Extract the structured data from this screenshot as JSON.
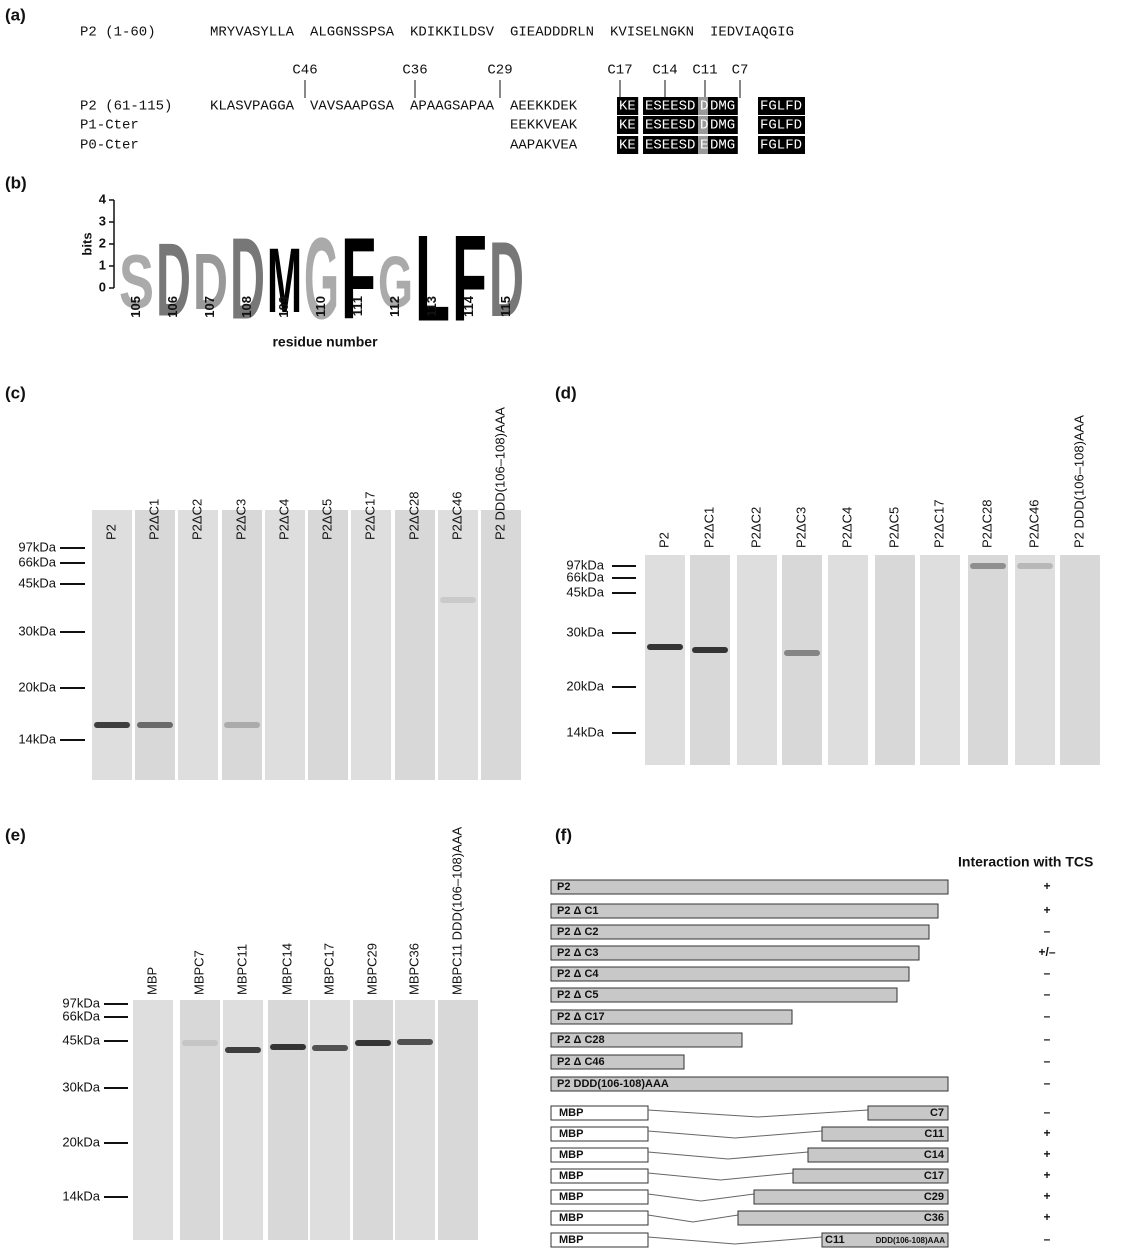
{
  "panel_a": {
    "label": "(a)",
    "row1": {
      "name": "P2 (1-60)",
      "blocks": [
        "MRYVASYLLA",
        "ALGGNSSPSA",
        "KDIKKILDSV",
        "GIEADDDRLN",
        "KVISELNGKN",
        "IEDVIAQGIG"
      ]
    },
    "cut_sites": [
      "C46",
      "C36",
      "C29",
      "C17",
      "C14",
      "C11",
      "C7"
    ],
    "rows": [
      {
        "name": "P2 (61-115)",
        "blocks": [
          "KLASVPAGGA",
          "VAVSAAPGSA",
          "APAAGSAPAA",
          "AEEKKDEK",
          "KE",
          "ESEESD",
          "D",
          "DMG",
          "FGLFD"
        ]
      },
      {
        "name": "P1-Cter",
        "blocks": [
          "EEKKVEAK",
          "KE",
          "ESEESD",
          "D",
          "DMG",
          "FGLFD"
        ]
      },
      {
        "name": "P0-Cter",
        "blocks": [
          "AAPAKVEA",
          "KE",
          "ESEESD",
          "E",
          "DMG",
          "FGLFD"
        ]
      }
    ]
  },
  "panel_b": {
    "label": "(b)",
    "ylabel": "bits",
    "xlabel": "residue number",
    "yticks": [
      0,
      1,
      2,
      3,
      4
    ],
    "ylim": [
      0,
      4
    ],
    "positions": [
      "105",
      "106",
      "107",
      "108",
      "109",
      "110",
      "111",
      "112",
      "113",
      "114",
      "115"
    ],
    "letters": [
      "S",
      "D",
      "D",
      "D",
      "M",
      "G",
      "F",
      "G",
      "L",
      "F",
      "D"
    ],
    "heights": [
      2.5,
      3.4,
      2.6,
      3.8,
      3.0,
      3.8,
      3.8,
      2.4,
      4.0,
      4.0,
      3.5
    ],
    "colors": [
      "#aaaaaa",
      "#777777",
      "#999999",
      "#777777",
      "#000000",
      "#aaaaaa",
      "#000000",
      "#aaaaaa",
      "#000000",
      "#000000",
      "#777777"
    ]
  },
  "panel_c": {
    "label": "(c)",
    "lanes": [
      "P2",
      "P2ΔC1",
      "P2ΔC2",
      "P2ΔC3",
      "P2ΔC4",
      "P2ΔC5",
      "P2ΔC17",
      "P2ΔC28",
      "P2ΔC46",
      "P2 DDD(106–108)AAA"
    ],
    "markers": [
      "97kDa",
      "66kDa",
      "45kDa",
      "30kDa",
      "20kDa",
      "14kDa"
    ]
  },
  "panel_d": {
    "label": "(d)",
    "lanes": [
      "P2",
      "P2ΔC1",
      "P2ΔC2",
      "P2ΔC3",
      "P2ΔC4",
      "P2ΔC5",
      "P2ΔC17",
      "P2ΔC28",
      "P2ΔC46",
      "P2 DDD(106–108)AAA"
    ],
    "markers": [
      "97kDa",
      "66kDa",
      "45kDa",
      "30kDa",
      "20kDa",
      "14kDa"
    ]
  },
  "panel_e": {
    "label": "(e)",
    "lanes": [
      "MBP",
      "MBPC7",
      "MBPC11",
      "MBPC14",
      "MBPC17",
      "MBPC29",
      "MBPC36",
      "MBPC11 DDD(106–108)AAA"
    ],
    "markers": [
      "97kDa",
      "66kDa",
      "45kDa",
      "30kDa",
      "20kDa",
      "14kDa"
    ]
  },
  "panel_f": {
    "label": "(f)",
    "header": "Interaction with TCS",
    "p2_constructs": [
      {
        "name": "P2",
        "result": "+"
      },
      {
        "name": "P2 Δ C1",
        "result": "+"
      },
      {
        "name": "P2 Δ C2",
        "result": "–"
      },
      {
        "name": "P2 Δ C3",
        "result": "+/–"
      },
      {
        "name": "P2 Δ C4",
        "result": "–"
      },
      {
        "name": "P2 Δ C5",
        "result": "–"
      },
      {
        "name": "P2 Δ C17",
        "result": "–"
      },
      {
        "name": "P2 Δ C28",
        "result": "–"
      },
      {
        "name": "P2 Δ C46",
        "result": "–"
      },
      {
        "name": "P2 DDD(106-108)AAA",
        "result": "–"
      }
    ],
    "mbp_constructs": [
      {
        "mbp": "MBP",
        "name": "C7",
        "result": "–"
      },
      {
        "mbp": "MBP",
        "name": "C11",
        "result": "+"
      },
      {
        "mbp": "MBP",
        "name": "C14",
        "result": "+"
      },
      {
        "mbp": "MBP",
        "name": "C17",
        "result": "+"
      },
      {
        "mbp": "MBP",
        "name": "C29",
        "result": "+"
      },
      {
        "mbp": "MBP",
        "name": "C36",
        "result": "+"
      },
      {
        "mbp": "MBP",
        "name": "C11",
        "suffix": "DDD(106-108)AAA",
        "result": "–"
      }
    ]
  }
}
